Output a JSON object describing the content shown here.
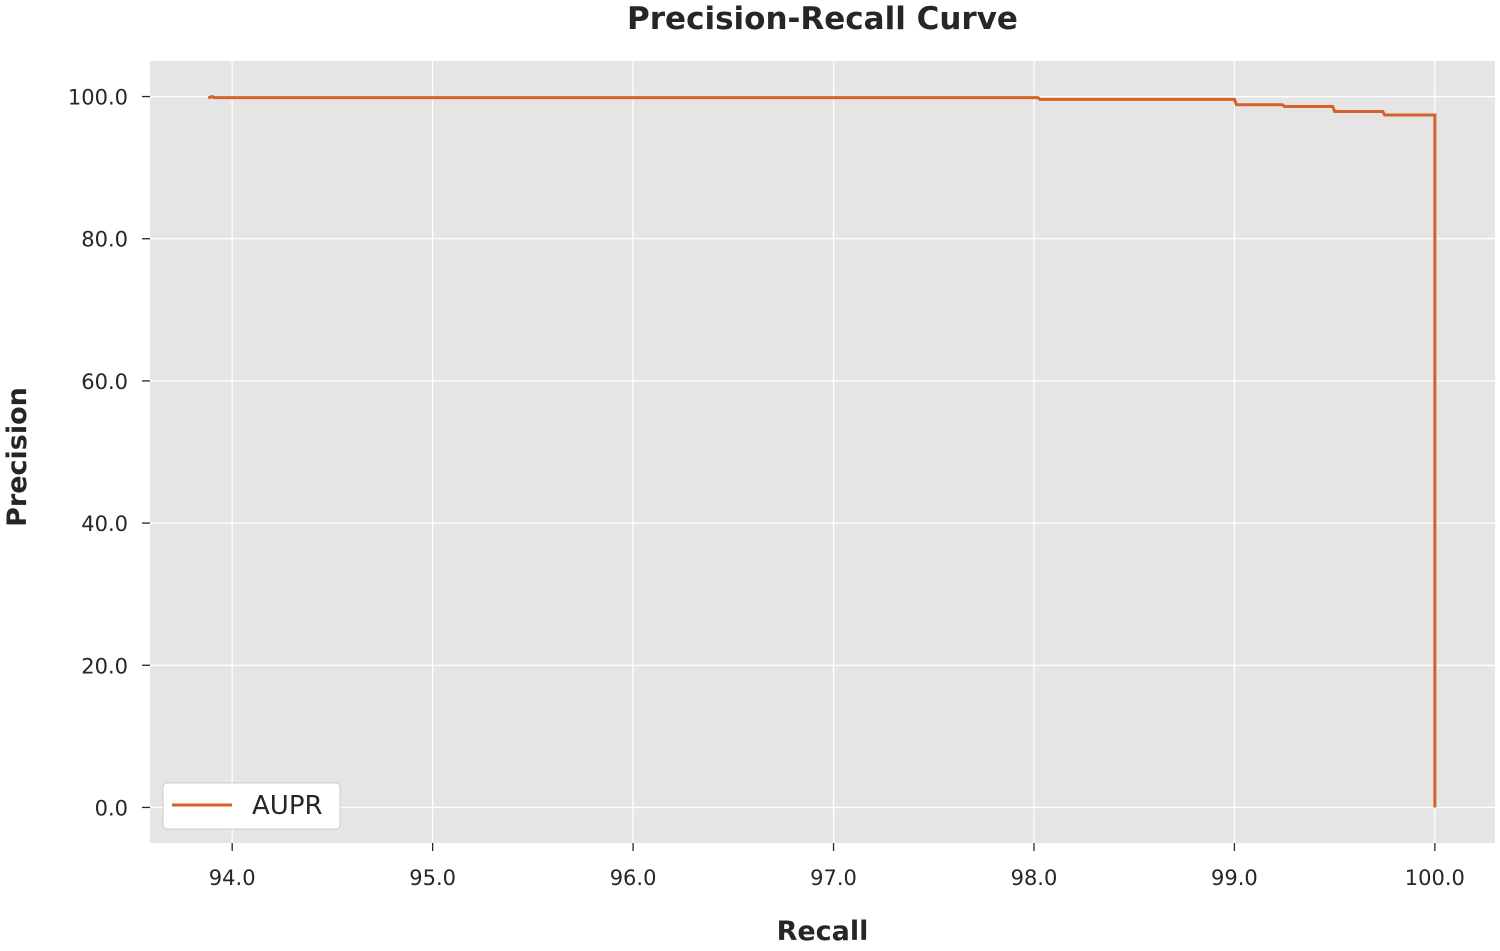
{
  "chart_data": {
    "type": "line",
    "title": "Precision-Recall Curve",
    "xlabel": "Recall",
    "ylabel": "Precision",
    "xlim": [
      93.59,
      100.3
    ],
    "ylim": [
      -5,
      105
    ],
    "xticks": [
      94.0,
      95.0,
      96.0,
      97.0,
      98.0,
      99.0,
      100.0
    ],
    "yticks": [
      0.0,
      20.0,
      40.0,
      60.0,
      80.0,
      100.0
    ],
    "xtick_labels": [
      "94.0",
      "95.0",
      "96.0",
      "97.0",
      "98.0",
      "99.0",
      "100.0"
    ],
    "ytick_labels": [
      "0.0",
      "20.0",
      "40.0",
      "60.0",
      "80.0",
      "100.0"
    ],
    "grid": true,
    "legend": {
      "position": "lower-left",
      "entries": [
        "AUPR"
      ]
    },
    "series": [
      {
        "name": "AUPR",
        "color": "#d4622b",
        "points": [
          [
            93.88,
            99.8
          ],
          [
            93.9,
            100.0
          ],
          [
            93.91,
            99.85
          ],
          [
            98.02,
            99.85
          ],
          [
            98.03,
            99.6
          ],
          [
            99.0,
            99.6
          ],
          [
            99.01,
            98.85
          ],
          [
            99.24,
            98.85
          ],
          [
            99.25,
            98.6
          ],
          [
            99.49,
            98.6
          ],
          [
            99.5,
            97.9
          ],
          [
            99.74,
            97.9
          ],
          [
            99.75,
            97.4
          ],
          [
            100.0,
            97.4
          ],
          [
            100.0,
            0.0
          ]
        ]
      }
    ]
  },
  "style": {
    "plot_background": "#e5e5e5",
    "grid_color": "#ffffff",
    "text_color": "#262626",
    "legend_background": "#ffffff",
    "legend_border": "#cccccc"
  }
}
